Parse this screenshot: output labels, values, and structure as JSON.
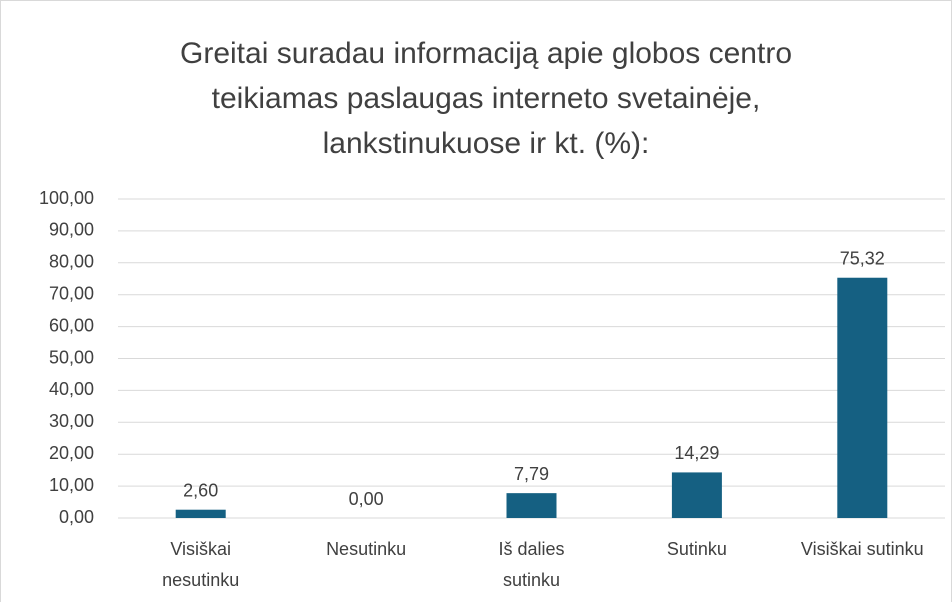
{
  "chart_data": {
    "type": "bar",
    "title": "Greitai suradau informaciją apie globos centro\nteikiamas paslaugas interneto svetainėje,\nlankstinukuose ir kt. (%):",
    "categories": [
      "Visiškai\nnesutinku",
      "Nesutinku",
      "Iš dalies\nsutinku",
      "Sutinku",
      "Visiškai sutinku"
    ],
    "values": [
      2.6,
      0,
      7.79,
      14.29,
      75.32
    ],
    "value_labels": [
      "2,60",
      "0,00",
      "7,79",
      "14,29",
      "75,32"
    ],
    "color": "#156082",
    "ylim": [
      0,
      100
    ],
    "yticks": [
      {
        "value": 0,
        "label": "0,00"
      },
      {
        "value": 10,
        "label": "10,00"
      },
      {
        "value": 20,
        "label": "20,00"
      },
      {
        "value": 30,
        "label": "30,00"
      },
      {
        "value": 40,
        "label": "40,00"
      },
      {
        "value": 50,
        "label": "50,00"
      },
      {
        "value": 60,
        "label": "60,00"
      },
      {
        "value": 70,
        "label": "70,00"
      },
      {
        "value": 80,
        "label": "80,00"
      },
      {
        "value": 90,
        "label": "90,00"
      },
      {
        "value": 100,
        "label": "100,00"
      }
    ],
    "grid": true
  }
}
